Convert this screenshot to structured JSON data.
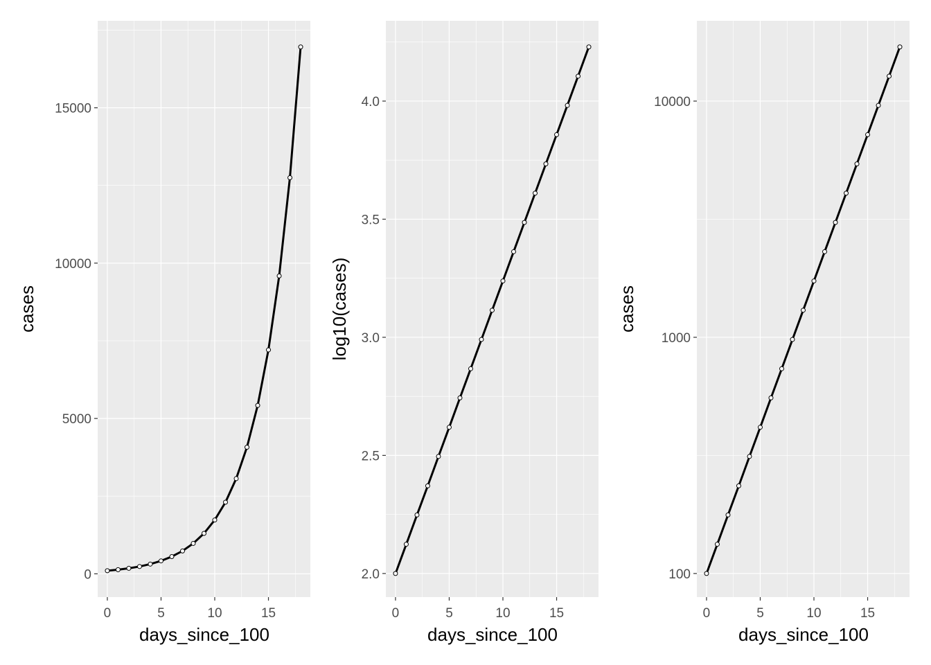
{
  "chart_data": [
    {
      "type": "line",
      "xlabel": "days_since_100",
      "ylabel": "cases",
      "yscale": "linear",
      "xlim": [
        -0.9,
        18.9
      ],
      "ylim": [
        -750,
        17800
      ],
      "xticks": [
        0,
        5,
        10,
        15
      ],
      "xtick_labels": [
        "0",
        "5",
        "10",
        "15"
      ],
      "yticks": [
        0,
        5000,
        10000,
        15000
      ],
      "ytick_labels": [
        "0",
        "5000",
        "10000",
        "15000"
      ],
      "grid": true
    },
    {
      "type": "line",
      "xlabel": "days_since_100",
      "ylabel": "log10(cases)",
      "yscale": "linear",
      "transform": "log10",
      "xlim": [
        -0.9,
        18.9
      ],
      "ylim": [
        1.9,
        4.34
      ],
      "xticks": [
        0,
        5,
        10,
        15
      ],
      "xtick_labels": [
        "0",
        "5",
        "10",
        "15"
      ],
      "yticks": [
        2.0,
        2.5,
        3.0,
        3.5,
        4.0
      ],
      "ytick_labels": [
        "2.0",
        "2.5",
        "3.0",
        "3.5",
        "4.0"
      ],
      "grid": true
    },
    {
      "type": "line",
      "xlabel": "days_since_100",
      "ylabel": "cases",
      "yscale": "log10",
      "xlim": [
        -0.9,
        18.9
      ],
      "ylim": [
        1.9,
        4.34
      ],
      "xticks": [
        0,
        5,
        10,
        15
      ],
      "xtick_labels": [
        "0",
        "5",
        "10",
        "15"
      ],
      "yticks": [
        100,
        1000,
        10000
      ],
      "ytick_labels": [
        "100",
        "1000",
        "10000"
      ],
      "grid": true
    }
  ],
  "series": {
    "x": [
      0,
      1,
      2,
      3,
      4,
      5,
      6,
      7,
      8,
      9,
      10,
      11,
      12,
      13,
      14,
      15,
      16,
      17,
      18
    ],
    "cases": [
      100,
      133,
      177,
      235,
      313,
      416,
      554,
      736,
      979,
      1302,
      1732,
      2304,
      3064,
      4075,
      5420,
      7208,
      9587,
      12750,
      16958
    ]
  }
}
